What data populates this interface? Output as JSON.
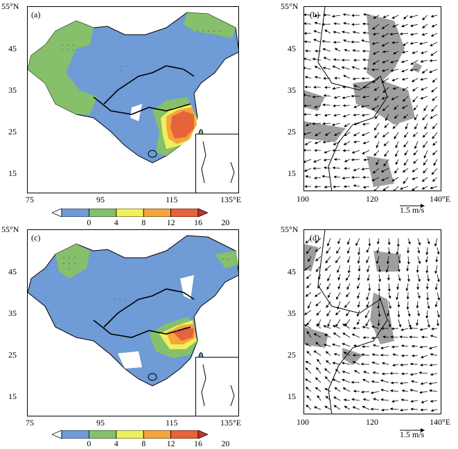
{
  "panels": {
    "a": {
      "label": "(a)"
    },
    "b": {
      "label": "(b)"
    },
    "c": {
      "label": "(c)"
    },
    "d": {
      "label": "(d)"
    }
  },
  "left_axes": {
    "x_ticks": [
      "75",
      "95",
      "115",
      "135°E"
    ],
    "y_ticks": [
      "55°N",
      "45",
      "35",
      "25",
      "15"
    ]
  },
  "right_axes": {
    "x_ticks": [
      "100",
      "120",
      "140°E"
    ],
    "y_ticks": [
      "55°N",
      "45",
      "35",
      "25",
      "15"
    ]
  },
  "colorbar": {
    "ticks": [
      "0",
      "4",
      "8",
      "12",
      "16",
      "20"
    ],
    "colors": [
      "#ffffff",
      "#6f9bd6",
      "#86c06a",
      "#f0ef5e",
      "#f5a53a",
      "#e8623a",
      "#c8342a"
    ]
  },
  "reference_vector": {
    "label": "1.5 m/s"
  }
}
